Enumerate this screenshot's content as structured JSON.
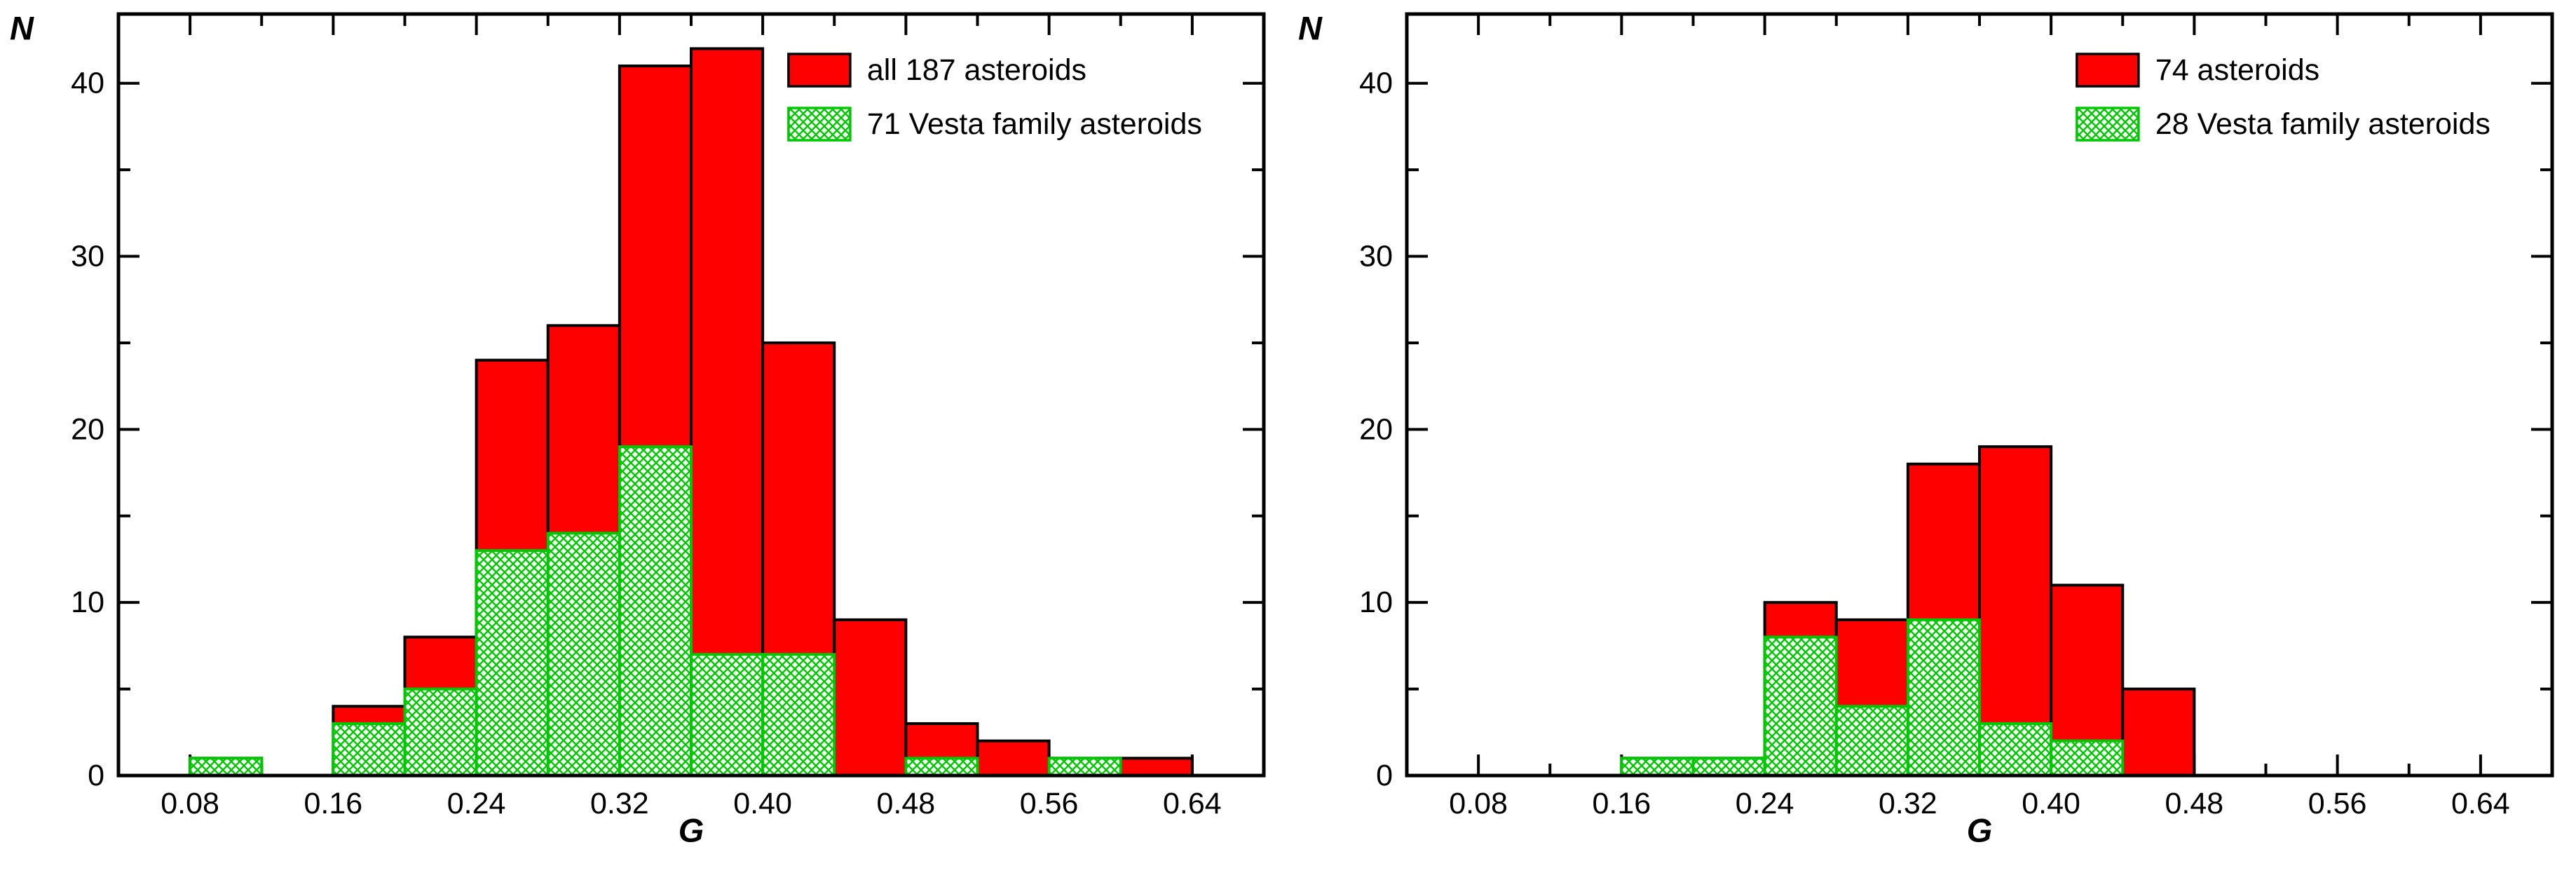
{
  "chart_data": [
    {
      "type": "bar",
      "subtype": "histogram",
      "panel": "left",
      "title": "",
      "xlabel": "G",
      "ylabel": "N",
      "xlim": [
        0.04,
        0.68
      ],
      "ylim": [
        0,
        44
      ],
      "grid": false,
      "legend_position": "top-right",
      "x_major_ticks": [
        {
          "v": 0.08,
          "label": "0.08"
        },
        {
          "v": 0.16,
          "label": "0.16"
        },
        {
          "v": 0.24,
          "label": "0.24"
        },
        {
          "v": 0.32,
          "label": "0.32"
        },
        {
          "v": 0.4,
          "label": "0.40"
        },
        {
          "v": 0.48,
          "label": "0.48"
        },
        {
          "v": 0.56,
          "label": "0.56"
        },
        {
          "v": 0.64,
          "label": "0.64"
        }
      ],
      "x_minor_step": 0.04,
      "y_major_ticks": [
        {
          "v": 0,
          "label": "0"
        },
        {
          "v": 10,
          "label": "10"
        },
        {
          "v": 20,
          "label": "20"
        },
        {
          "v": 30,
          "label": "30"
        },
        {
          "v": 40,
          "label": "40"
        }
      ],
      "y_minor_step": 5,
      "bin_width": 0.04,
      "series": [
        {
          "name": "all 187 asteroids",
          "style": "solid",
          "color": "#ff0000",
          "outline": "#000000",
          "bins": [
            0.08,
            0.12,
            0.16,
            0.2,
            0.24,
            0.28,
            0.32,
            0.36,
            0.4,
            0.44,
            0.48,
            0.52,
            0.56,
            0.6
          ],
          "values": [
            1,
            0,
            4,
            8,
            24,
            26,
            41,
            42,
            25,
            9,
            3,
            2,
            1,
            1
          ]
        },
        {
          "name": "71 Vesta family asteroids",
          "style": "crosshatch",
          "color": "#00c800",
          "outline": "#00c800",
          "bins": [
            0.08,
            0.12,
            0.16,
            0.2,
            0.24,
            0.28,
            0.32,
            0.36,
            0.4,
            0.44,
            0.48,
            0.52,
            0.56,
            0.6
          ],
          "values": [
            1,
            0,
            3,
            5,
            13,
            14,
            19,
            7,
            7,
            0,
            1,
            0,
            1,
            0
          ]
        }
      ]
    },
    {
      "type": "bar",
      "subtype": "histogram",
      "panel": "right",
      "title": "",
      "xlabel": "G",
      "ylabel": "N",
      "xlim": [
        0.04,
        0.68
      ],
      "ylim": [
        0,
        44
      ],
      "grid": false,
      "legend_position": "top-right",
      "x_major_ticks": [
        {
          "v": 0.08,
          "label": "0.08"
        },
        {
          "v": 0.16,
          "label": "0.16"
        },
        {
          "v": 0.24,
          "label": "0.24"
        },
        {
          "v": 0.32,
          "label": "0.32"
        },
        {
          "v": 0.4,
          "label": "0.40"
        },
        {
          "v": 0.48,
          "label": "0.48"
        },
        {
          "v": 0.56,
          "label": "0.56"
        },
        {
          "v": 0.64,
          "label": "0.64"
        }
      ],
      "x_minor_step": 0.04,
      "y_major_ticks": [
        {
          "v": 0,
          "label": "0"
        },
        {
          "v": 10,
          "label": "10"
        },
        {
          "v": 20,
          "label": "20"
        },
        {
          "v": 30,
          "label": "30"
        },
        {
          "v": 40,
          "label": "40"
        }
      ],
      "y_minor_step": 5,
      "bin_width": 0.04,
      "series": [
        {
          "name": "74 asteroids",
          "style": "solid",
          "color": "#ff0000",
          "outline": "#000000",
          "bins": [
            0.16,
            0.2,
            0.24,
            0.28,
            0.32,
            0.36,
            0.4,
            0.44
          ],
          "values": [
            1,
            1,
            10,
            9,
            18,
            19,
            11,
            5
          ]
        },
        {
          "name": "28 Vesta family asteroids",
          "style": "crosshatch",
          "color": "#00c800",
          "outline": "#00c800",
          "bins": [
            0.16,
            0.2,
            0.24,
            0.28,
            0.32,
            0.36,
            0.4,
            0.44
          ],
          "values": [
            1,
            1,
            8,
            4,
            9,
            3,
            2,
            0
          ]
        }
      ]
    }
  ]
}
